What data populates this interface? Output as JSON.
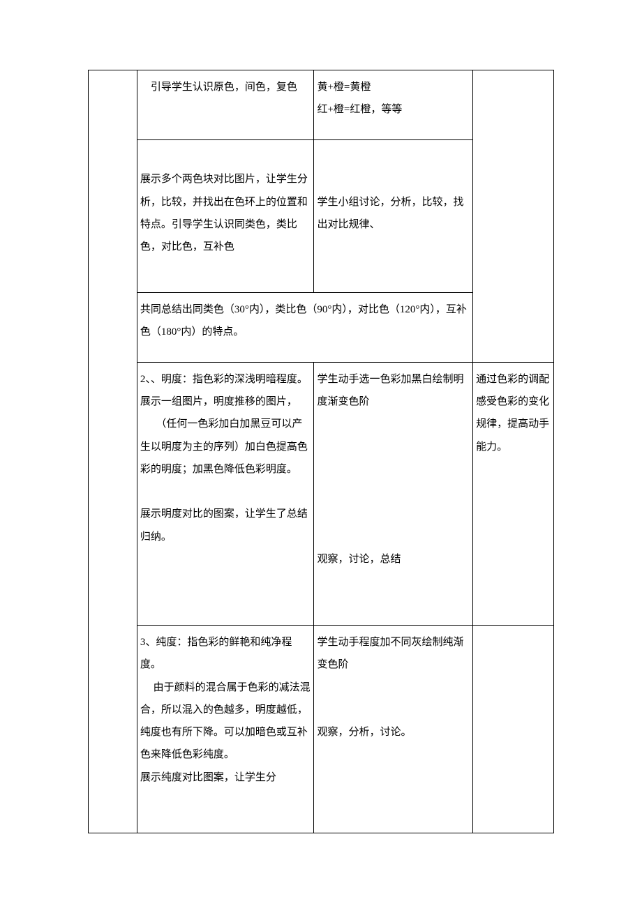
{
  "rows": {
    "r1": {
      "c2": "　引导学生认识原色，间色，复色",
      "c3": "黄+橙=黄橙\n红+橙=红橙，等等"
    },
    "r2": {
      "c2_p1": "展示多个两色块对比图片，让学生分析，比较，并找出在色环上的位置和特点。引导学生认识同类色，类比色，对比色，互补色",
      "c3_p1": "学生小组讨论，分析，比较，找出对比规律、"
    },
    "r3": {
      "c23": "共同总结出同类色（30°内），类比色（90°内），对比色（120°内），互补色（180°内）的特点。"
    },
    "r4": {
      "c2": "2、、明度：指色彩的深浅明暗程度。\n展示一组图片，明度推移的图片，\n　　（任何一色彩加白加黑豆可以产生以明度为主的序列）加白色提高色彩的明度；加黑色降低色彩明度。\n\n展示明度对比的图案，让学生了总结归纳。",
      "c3": "学生动手选一色彩加黑白绘制明度渐变色阶\n\n\n\n\n\n\n观察，讨论，总结",
      "c4": "通过色彩的调配感受色彩的变化规律，提高动手能力。"
    },
    "r5": {
      "c2": "3、纯度：指色彩的鲜艳和纯净程度。\n　 由于颜料的混合属于色彩的减法混合，所以混入的色越多，明度越低，纯度也有所下降。可以加暗色或互补色来降低色彩纯度。\n展示纯度对比图案，让学生分",
      "c3": "学生动手程度加不同灰绘制纯渐变色阶\n\n\n观察，分析，讨论。"
    }
  },
  "style": {
    "border_color": "#000000",
    "text_color": "#000000",
    "background_color": "#ffffff",
    "font_size": 15,
    "line_height": 2.15,
    "font_family": "SimSun"
  }
}
